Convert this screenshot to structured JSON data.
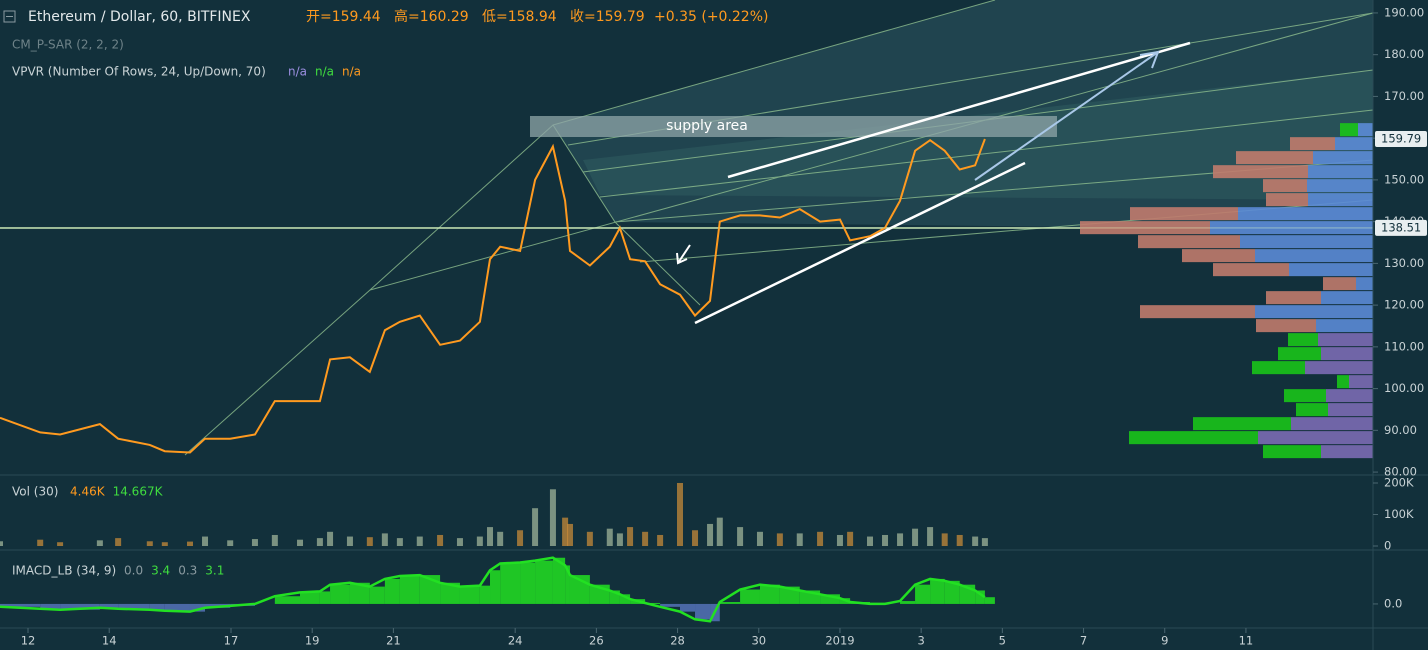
{
  "chart_data": [
    {
      "type": "line",
      "title": "Ethereum / Dollar, 60, BITFINEX",
      "ohlc": [
        "开=159.44",
        "高=160.29",
        "低=158.94",
        "收=159.79"
      ],
      "change": "+0.35 (+0.22%)",
      "indicators": [
        "CM_P-SAR (2, 2, 2)"
      ],
      "annotation": "supply area",
      "color": "#ff9a1f",
      "x": [
        11.31,
        12.3,
        12.79,
        13.77,
        14.22,
        15,
        15.37,
        15.99,
        16.36,
        16.98,
        17.59,
        18.08,
        18.7,
        19.19,
        19.44,
        19.93,
        20.42,
        20.79,
        21.16,
        21.65,
        22.15,
        22.64,
        23.13,
        23.38,
        23.63,
        24.12,
        24.49,
        24.93,
        25.23,
        25.35,
        25.84,
        26.33,
        26.58,
        26.83,
        27.2,
        27.57,
        28.06,
        28.43,
        28.8,
        29.04,
        29.54,
        30.03,
        30.52,
        31.01,
        31.51,
        32,
        32.25,
        32.74,
        33.11,
        33.48,
        33.85,
        34.22,
        34.58,
        34.95,
        35.33,
        35.57
      ],
      "values": [
        93,
        89.5,
        89,
        91.5,
        88,
        86.5,
        85,
        84.7,
        88,
        88,
        89,
        97,
        97,
        97,
        107,
        107.5,
        104,
        114,
        116,
        117.5,
        110.5,
        111.5,
        116,
        131,
        134,
        133,
        150,
        158,
        145,
        133,
        129.5,
        134,
        138.5,
        131,
        130.5,
        125,
        122.5,
        117.5,
        121,
        140,
        141.5,
        141.5,
        141,
        143,
        140,
        140.5,
        135.5,
        136.5,
        138.5,
        145,
        157,
        159.5,
        157,
        152.5,
        153.5,
        159.79
      ],
      "xlim": [
        11.31,
        45.13
      ],
      "xticks": [
        12,
        14,
        17,
        19,
        21,
        24,
        26,
        28,
        30,
        {
          "value": 32,
          "label": "2019"
        },
        {
          "value": 34,
          "label": "3"
        },
        {
          "value": 36,
          "label": "5"
        },
        {
          "value": 38,
          "label": "7"
        },
        {
          "value": 40,
          "label": "9"
        },
        {
          "value": 42,
          "label": "11"
        }
      ],
      "ylim": [
        79.3,
        193.1
      ],
      "yticks": [
        {
          "value": 80,
          "label": "80.00"
        },
        {
          "value": 90,
          "label": "90.00"
        },
        {
          "value": 100,
          "label": "100.00"
        },
        {
          "value": 110,
          "label": "110.00"
        },
        {
          "value": 120,
          "label": "120.00"
        },
        {
          "value": 130,
          "label": "130.00"
        },
        {
          "value": 140,
          "label": "140.00"
        },
        {
          "value": 150,
          "label": "150.00"
        },
        {
          "value": 160,
          "label": "160.00"
        },
        {
          "value": 170,
          "label": "170.00"
        },
        {
          "value": 180,
          "label": "180.00"
        },
        {
          "value": 190,
          "label": "190.00"
        }
      ],
      "price_labels": [
        159.79,
        138.51
      ],
      "hline": 138.51,
      "volume_profile": {
        "title": "VPVR (Number Of Rows, 24, Up/Down, 70)",
        "readouts": [
          "n/a",
          "n/a",
          "n/a"
        ],
        "readout_colors": [
          "#9b8ee0",
          "#3fdc3f",
          "#ff9a1f"
        ],
        "bins": [
          83.1,
          86.45,
          89.81,
          93.16,
          96.52,
          99.87,
          103.22,
          106.58,
          109.93,
          113.29,
          116.64,
          119.99,
          123.35,
          126.7,
          130.06,
          133.41,
          136.76,
          140.12,
          143.47,
          146.83,
          150.18,
          153.53,
          156.89,
          160.24,
          163.6
        ],
        "up": [
          52,
          115,
          82,
          45,
          47,
          24,
          68,
          52,
          55,
          57,
          118,
          52,
          17,
          84,
          118,
          133,
          163,
          135,
          65,
          66,
          65,
          60,
          38,
          15
        ],
        "down": [
          58,
          129,
          98,
          32,
          42,
          12,
          53,
          43,
          30,
          60,
          115,
          55,
          33,
          76,
          73,
          102,
          130,
          108,
          42,
          44,
          95,
          77,
          45,
          18
        ],
        "up_colors": [
          "#7b6cb4",
          "#7b6cb4",
          "#7b6cb4",
          "#7b6cb4",
          "#7b6cb4",
          "#7b6cb4",
          "#7b6cb4",
          "#7b6cb4",
          "#7b6cb4",
          "#5b8bd6",
          "#5b8bd6",
          "#5b8bd6",
          "#5b8bd6",
          "#5b8bd6",
          "#5b8bd6",
          "#5b8bd6",
          "#5b8bd6",
          "#5b8bd6",
          "#5b8bd6",
          "#5b8bd6",
          "#5b8bd6",
          "#5b8bd6",
          "#5b8bd6",
          "#5b8bd6"
        ],
        "down_colors": [
          "#19c419",
          "#19c419",
          "#19c419",
          "#19c419",
          "#19c419",
          "#19c419",
          "#19c419",
          "#19c419",
          "#19c419",
          "#c07b6d",
          "#c07b6d",
          "#c07b6d",
          "#c07b6d",
          "#c07b6d",
          "#c07b6d",
          "#c07b6d",
          "#c07b6d",
          "#c07b6d",
          "#c07b6d",
          "#c07b6d",
          "#c07b6d",
          "#c07b6d",
          "#c07b6d",
          "#19c419"
        ],
        "xlim": [
          0,
          300
        ]
      }
    },
    {
      "type": "bar",
      "title": "Vol (30)",
      "readouts": [
        "4.46K",
        "14.667K"
      ],
      "readout_colors": [
        "#ff9a1f",
        "#3fdc3f"
      ],
      "color": "#9fb39a",
      "x": [
        11.31,
        12.3,
        12.79,
        13.77,
        14.22,
        15,
        15.37,
        15.99,
        16.36,
        16.98,
        17.59,
        18.08,
        18.7,
        19.19,
        19.44,
        19.93,
        20.42,
        20.79,
        21.16,
        21.65,
        22.15,
        22.64,
        23.13,
        23.38,
        23.63,
        24.12,
        24.49,
        24.93,
        25.23,
        25.35,
        25.84,
        26.33,
        26.58,
        26.83,
        27.2,
        27.57,
        28.06,
        28.43,
        28.8,
        29.04,
        29.54,
        30.03,
        30.52,
        31.01,
        31.51,
        32,
        32.25,
        32.74,
        33.11,
        33.48,
        33.85,
        34.22,
        34.58,
        34.95,
        35.33,
        35.57
      ],
      "values": [
        15000,
        20000,
        12000,
        18000,
        25000,
        15000,
        12000,
        14000,
        30000,
        18000,
        22000,
        35000,
        20000,
        25000,
        45000,
        30000,
        28000,
        40000,
        25000,
        30000,
        35000,
        25000,
        30000,
        60000,
        45000,
        50000,
        120000,
        180000,
        90000,
        70000,
        45000,
        55000,
        40000,
        60000,
        45000,
        35000,
        200000,
        50000,
        70000,
        90000,
        60000,
        45000,
        40000,
        40000,
        45000,
        35000,
        45000,
        30000,
        35000,
        40000,
        55000,
        60000,
        40000,
        35000,
        30000,
        25000
      ],
      "ylim": [
        0,
        219000
      ],
      "yticks": [
        0,
        {
          "value": 100000,
          "label": "100K"
        },
        {
          "value": 200000,
          "label": "200K"
        }
      ]
    },
    {
      "type": "histogram",
      "title": "IMACD_LB (34, 9)",
      "readouts": [
        "0.0",
        "3.4",
        "0.3",
        "3.1"
      ],
      "readout_colors": [
        "#8a9aa0",
        "#3fdc3f",
        "#8a9aa0",
        "#3fdc3f"
      ],
      "color": "#22e022",
      "x": [
        11.31,
        12.3,
        12.79,
        13.77,
        14.22,
        15,
        15.37,
        15.99,
        16.36,
        16.98,
        17.59,
        18.08,
        18.7,
        19.19,
        19.44,
        19.93,
        20.42,
        20.79,
        21.16,
        21.65,
        22.15,
        22.64,
        23.13,
        23.38,
        23.63,
        24.12,
        24.49,
        24.93,
        25.23,
        25.35,
        25.84,
        26.33,
        26.58,
        26.83,
        27.2,
        27.57,
        28.06,
        28.43,
        28.8,
        29.04,
        29.54,
        30.03,
        30.52,
        31.01,
        31.51,
        32,
        32.25,
        32.74,
        33.11,
        33.48,
        33.85,
        34.22,
        34.58,
        34.95,
        35.33,
        35.57
      ],
      "values": [
        -0.3,
        -0.5,
        -0.6,
        -0.4,
        -0.5,
        -0.6,
        -0.7,
        -0.8,
        -0.4,
        -0.2,
        0,
        0.8,
        1.2,
        1.3,
        2,
        2.2,
        1.8,
        2.6,
        2.9,
        3,
        2.2,
        1.8,
        1.9,
        3.5,
        4.2,
        4.3,
        4.5,
        4.8,
        4,
        3,
        2,
        1.4,
        1,
        0.5,
        0.1,
        -0.3,
        -0.8,
        -1.6,
        -1.8,
        0.2,
        1.5,
        2,
        1.8,
        1.4,
        1,
        0.6,
        0.2,
        0,
        0,
        0.3,
        2,
        2.6,
        2.4,
        2,
        1.4,
        0.7
      ],
      "ylim": [
        -2.5,
        5.5
      ],
      "yticks": [
        {
          "value": 0,
          "label": "0.0"
        }
      ]
    }
  ]
}
